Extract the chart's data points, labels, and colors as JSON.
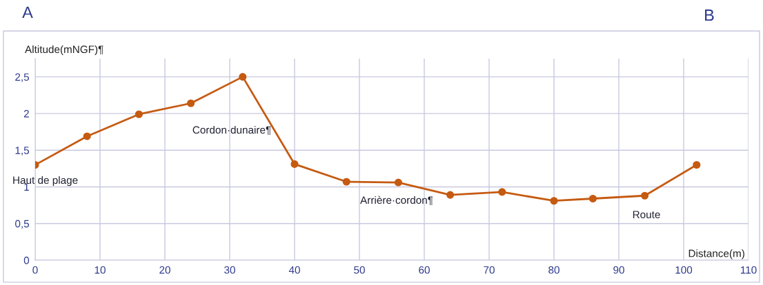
{
  "chart_data": {
    "type": "line",
    "xlabel": "Distance(m)",
    "ylabel": "Altitude(mNGF)¶",
    "x": [
      0,
      8,
      16,
      24,
      32,
      40,
      48,
      56,
      64,
      72,
      80,
      86,
      94,
      102
    ],
    "series": [
      {
        "color": "#c55a11",
        "values": [
          1.3,
          1.69,
          1.99,
          2.14,
          2.5,
          1.31,
          1.07,
          1.06,
          0.89,
          0.93,
          0.81,
          0.84,
          0.88,
          1.3
        ]
      }
    ],
    "xlim": [
      0,
      110
    ],
    "xticks": [
      0,
      10,
      20,
      30,
      40,
      50,
      60,
      70,
      80,
      90,
      100,
      110
    ],
    "ylim": [
      0,
      2.75
    ],
    "yticks": [
      {
        "value": 0,
        "label": "0"
      },
      {
        "value": 0.5,
        "label": "0,5"
      },
      {
        "value": 1,
        "label": "1"
      },
      {
        "value": 1.5,
        "label": "1,5"
      },
      {
        "value": 2,
        "label": "2"
      },
      {
        "value": 2.5,
        "label": "2,5"
      }
    ],
    "grid": true,
    "marker": "circle",
    "line_style": "solid",
    "annotations": [
      "A",
      "B",
      "Haut de plage",
      "Cordon·dunaire¶",
      "Arrière·cordon¶",
      "Route"
    ]
  }
}
